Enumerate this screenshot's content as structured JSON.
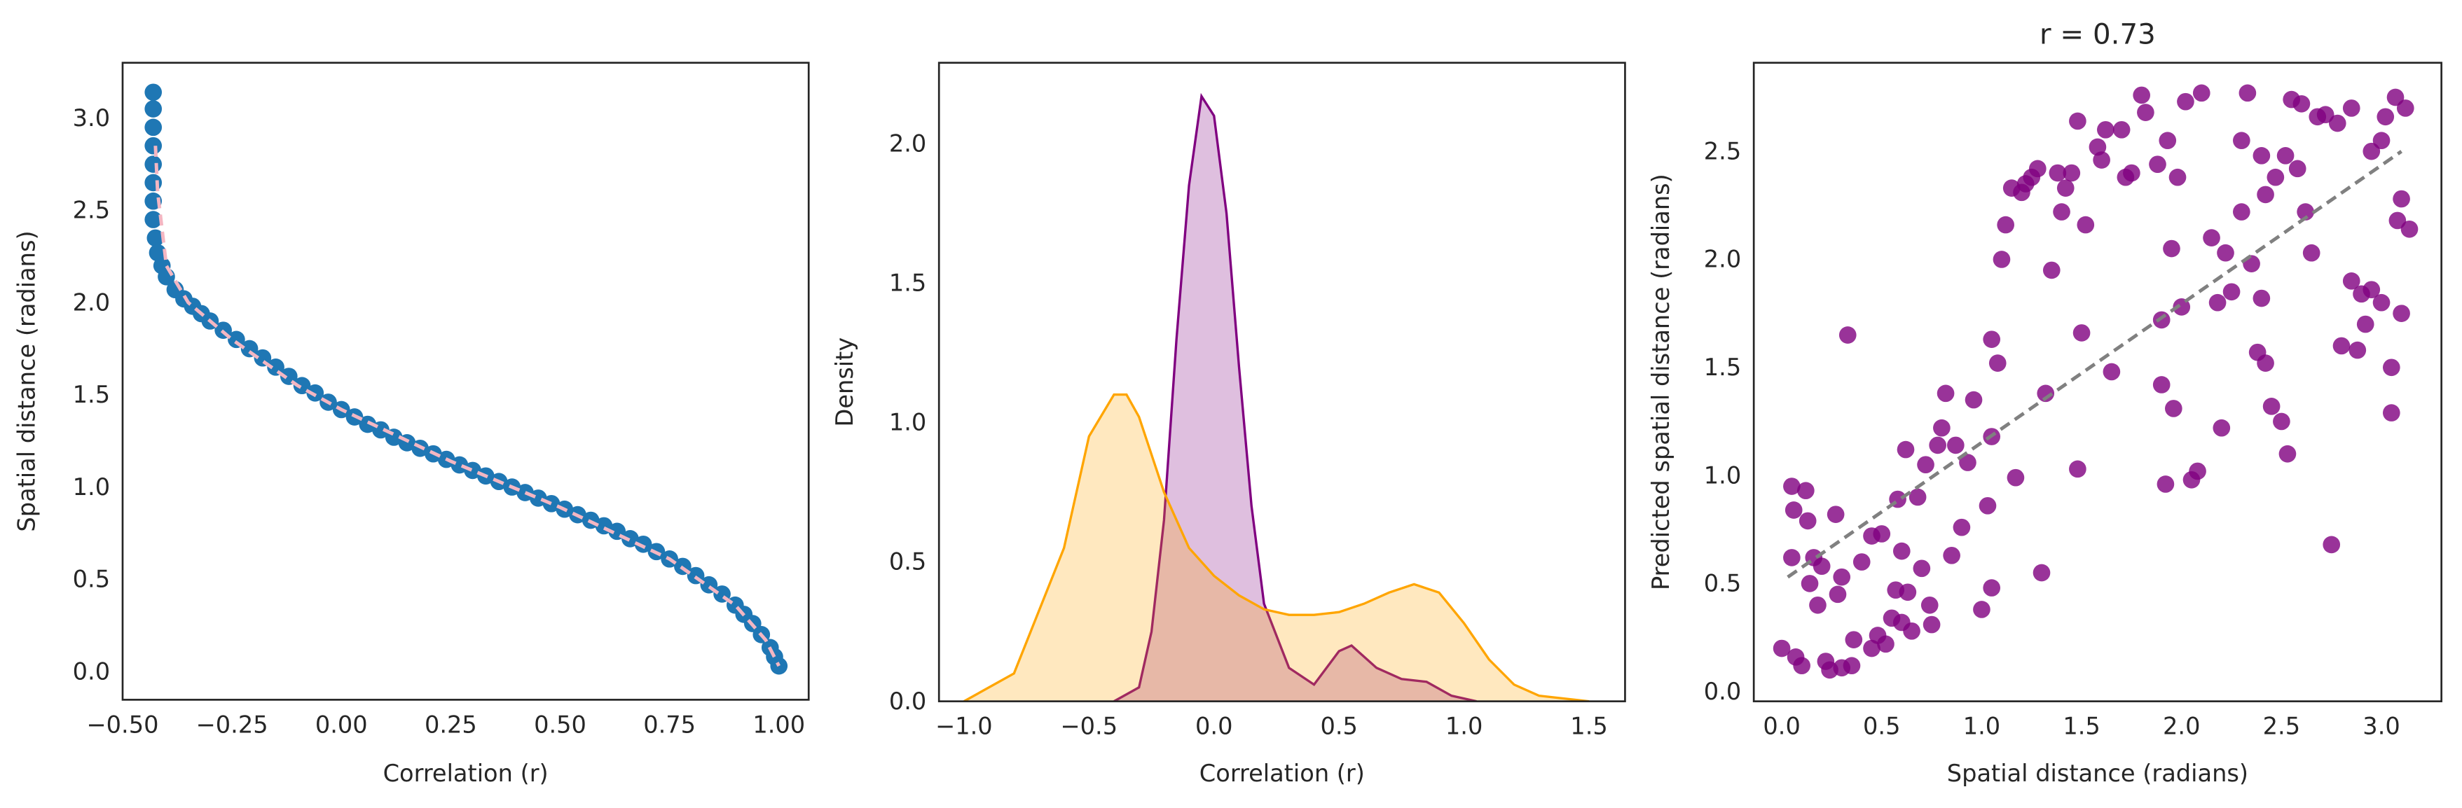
{
  "chart_data": [
    {
      "type": "scatter",
      "xlabel": "Correlation (r)",
      "ylabel": "Spatial distance (radians)",
      "xlim": [
        -0.5,
        1.068
      ],
      "ylim": [
        -0.153,
        3.3
      ],
      "xticks": [
        {
          "value": -0.5,
          "label": "−0.50"
        },
        {
          "value": -0.25,
          "label": "−0.25"
        },
        {
          "value": 0,
          "label": "0.00"
        },
        {
          "value": 0.25,
          "label": "0.25"
        },
        {
          "value": 0.5,
          "label": "0.50"
        },
        {
          "value": 0.75,
          "label": "0.75"
        },
        {
          "value": 1,
          "label": "1.00"
        }
      ],
      "yticks": [
        {
          "value": 0,
          "label": "0.0"
        },
        {
          "value": 0.5,
          "label": "0.5"
        },
        {
          "value": 1,
          "label": "1.0"
        },
        {
          "value": 1.5,
          "label": "1.5"
        },
        {
          "value": 2,
          "label": "2.0"
        },
        {
          "value": 2.5,
          "label": "2.5"
        },
        {
          "value": 3,
          "label": "3.0"
        }
      ],
      "series": [
        {
          "type": "scatter",
          "color": "#1f77b4",
          "alpha": 1,
          "x": [
            -0.43,
            -0.43,
            -0.43,
            -0.43,
            -0.43,
            -0.43,
            -0.43,
            -0.43,
            -0.425,
            -0.42,
            -0.41,
            -0.4,
            -0.38,
            -0.36,
            -0.34,
            -0.32,
            -0.3,
            -0.27,
            -0.24,
            -0.21,
            -0.18,
            -0.15,
            -0.12,
            -0.09,
            -0.06,
            -0.03,
            0,
            0.03,
            0.06,
            0.09,
            0.12,
            0.15,
            0.18,
            0.21,
            0.24,
            0.27,
            0.3,
            0.33,
            0.36,
            0.39,
            0.42,
            0.45,
            0.48,
            0.51,
            0.54,
            0.57,
            0.6,
            0.63,
            0.66,
            0.69,
            0.72,
            0.75,
            0.78,
            0.81,
            0.84,
            0.87,
            0.9,
            0.92,
            0.94,
            0.96,
            0.98,
            0.99,
            1.0
          ],
          "values": [
            3.14,
            3.05,
            2.95,
            2.85,
            2.75,
            2.65,
            2.55,
            2.45,
            2.35,
            2.27,
            2.2,
            2.14,
            2.07,
            2.02,
            1.98,
            1.94,
            1.9,
            1.85,
            1.8,
            1.75,
            1.7,
            1.65,
            1.6,
            1.55,
            1.51,
            1.46,
            1.42,
            1.38,
            1.34,
            1.31,
            1.27,
            1.24,
            1.21,
            1.18,
            1.15,
            1.12,
            1.09,
            1.06,
            1.03,
            1.0,
            0.97,
            0.94,
            0.91,
            0.88,
            0.85,
            0.82,
            0.79,
            0.76,
            0.72,
            0.69,
            0.65,
            0.61,
            0.57,
            0.52,
            0.47,
            0.42,
            0.36,
            0.31,
            0.26,
            0.2,
            0.13,
            0.08,
            0.03
          ]
        },
        {
          "type": "line",
          "color": "#f4b6c2",
          "dash": true,
          "x": [
            -0.425,
            -0.42,
            -0.4,
            -0.35,
            -0.25,
            -0.1,
            0,
            0.25,
            0.5,
            0.75,
            0.9,
            0.97,
            1.0
          ],
          "values": [
            2.85,
            2.6,
            2.2,
            2.0,
            1.8,
            1.55,
            1.42,
            1.14,
            0.89,
            0.61,
            0.36,
            0.17,
            0.03
          ]
        }
      ]
    },
    {
      "type": "area",
      "xlabel": "Correlation (r)",
      "ylabel": "Density",
      "xlim": [
        -1.1,
        1.644
      ],
      "ylim": [
        0,
        2.29
      ],
      "xticks": [
        {
          "value": -1,
          "label": "−1.0"
        },
        {
          "value": -0.5,
          "label": "−0.5"
        },
        {
          "value": 0,
          "label": "0.0"
        },
        {
          "value": 0.5,
          "label": "0.5"
        },
        {
          "value": 1,
          "label": "1.0"
        },
        {
          "value": 1.5,
          "label": "1.5"
        }
      ],
      "yticks": [
        {
          "value": 0,
          "label": "0.0"
        },
        {
          "value": 0.5,
          "label": "0.5"
        },
        {
          "value": 1,
          "label": "1.0"
        },
        {
          "value": 1.5,
          "label": "1.5"
        },
        {
          "value": 2,
          "label": "2.0"
        }
      ],
      "series": [
        {
          "type": "area",
          "color": "#800080",
          "alpha": 0.25,
          "x": [
            -0.4,
            -0.3,
            -0.25,
            -0.2,
            -0.15,
            -0.1,
            -0.05,
            0,
            0.05,
            0.1,
            0.15,
            0.2,
            0.3,
            0.4,
            0.5,
            0.55,
            0.65,
            0.75,
            0.85,
            0.95,
            1.05
          ],
          "values": [
            0,
            0.05,
            0.25,
            0.65,
            1.3,
            1.85,
            2.17,
            2.1,
            1.75,
            1.2,
            0.7,
            0.35,
            0.12,
            0.06,
            0.18,
            0.2,
            0.12,
            0.08,
            0.07,
            0.02,
            0
          ]
        },
        {
          "type": "area",
          "color": "#ffa500",
          "alpha": 0.25,
          "x": [
            -1.0,
            -0.8,
            -0.6,
            -0.5,
            -0.4,
            -0.35,
            -0.3,
            -0.2,
            -0.1,
            0,
            0.1,
            0.2,
            0.3,
            0.4,
            0.5,
            0.6,
            0.7,
            0.8,
            0.9,
            1.0,
            1.1,
            1.2,
            1.3,
            1.5
          ],
          "values": [
            0,
            0.1,
            0.55,
            0.95,
            1.1,
            1.1,
            1.02,
            0.75,
            0.55,
            0.45,
            0.38,
            0.33,
            0.31,
            0.31,
            0.32,
            0.35,
            0.39,
            0.42,
            0.39,
            0.28,
            0.15,
            0.06,
            0.02,
            0
          ]
        }
      ]
    },
    {
      "type": "scatter",
      "title": "r = 0.73",
      "xlabel": "Spatial distance (radians)",
      "ylabel": "Predicted spatial distance (radians)",
      "xlim": [
        -0.14,
        3.3
      ],
      "ylim": [
        -0.045,
        2.91
      ],
      "xticks": [
        {
          "value": 0,
          "label": "0.0"
        },
        {
          "value": 0.5,
          "label": "0.5"
        },
        {
          "value": 1,
          "label": "1.0"
        },
        {
          "value": 1.5,
          "label": "1.5"
        },
        {
          "value": 2,
          "label": "2.0"
        },
        {
          "value": 2.5,
          "label": "2.5"
        },
        {
          "value": 3,
          "label": "3.0"
        }
      ],
      "yticks": [
        {
          "value": 0,
          "label": "0.0"
        },
        {
          "value": 0.5,
          "label": "0.5"
        },
        {
          "value": 1,
          "label": "1.0"
        },
        {
          "value": 1.5,
          "label": "1.5"
        },
        {
          "value": 2,
          "label": "2.0"
        },
        {
          "value": 2.5,
          "label": "2.5"
        }
      ],
      "series": [
        {
          "type": "scatter",
          "color": "#800080",
          "alpha": 0.8,
          "x": [
            0.0,
            0.05,
            0.05,
            0.06,
            0.07,
            0.1,
            0.12,
            0.13,
            0.14,
            0.16,
            0.18,
            0.2,
            0.22,
            0.24,
            0.27,
            0.28,
            0.3,
            0.3,
            0.33,
            0.35,
            0.36,
            0.4,
            0.45,
            0.45,
            0.48,
            0.5,
            0.52,
            0.55,
            0.57,
            0.58,
            0.6,
            0.6,
            0.62,
            0.63,
            0.65,
            0.68,
            0.7,
            0.72,
            0.74,
            0.75,
            0.78,
            0.8,
            0.82,
            0.85,
            0.87,
            0.9,
            0.93,
            0.96,
            1.0,
            1.03,
            1.05,
            1.05,
            1.05,
            1.08,
            1.1,
            1.12,
            1.15,
            1.17,
            1.2,
            1.22,
            1.25,
            1.28,
            1.3,
            1.32,
            1.35,
            1.38,
            1.4,
            1.42,
            1.45,
            1.48,
            1.48,
            1.5,
            1.52,
            1.58,
            1.6,
            1.62,
            1.65,
            1.7,
            1.72,
            1.75,
            1.8,
            1.82,
            1.88,
            1.9,
            1.9,
            1.92,
            1.93,
            1.95,
            1.96,
            1.98,
            2.0,
            2.02,
            2.05,
            2.08,
            2.1,
            2.15,
            2.18,
            2.2,
            2.22,
            2.25,
            2.3,
            2.3,
            2.33,
            2.35,
            2.38,
            2.4,
            2.42,
            2.42,
            2.45,
            2.47,
            2.5,
            2.52,
            2.53,
            2.55,
            2.58,
            2.6,
            2.62,
            2.65,
            2.68,
            2.72,
            2.75,
            2.78,
            2.8,
            2.85,
            2.88,
            2.9,
            2.92,
            2.95,
            2.95,
            3.0,
            3.0,
            3.02,
            3.05,
            3.05,
            3.07,
            3.08,
            3.1,
            3.1,
            3.12,
            3.14,
            2.4,
            2.85
          ],
          "values": [
            0.2,
            0.95,
            0.62,
            0.84,
            0.16,
            0.12,
            0.93,
            0.79,
            0.5,
            0.62,
            0.4,
            0.58,
            0.14,
            0.1,
            0.82,
            0.45,
            0.53,
            0.11,
            1.65,
            0.12,
            0.24,
            0.6,
            0.2,
            0.72,
            0.26,
            0.73,
            0.22,
            0.34,
            0.47,
            0.89,
            0.32,
            0.65,
            1.12,
            0.46,
            0.28,
            0.9,
            0.57,
            1.05,
            0.4,
            0.31,
            1.14,
            1.22,
            1.38,
            0.63,
            1.14,
            0.76,
            1.06,
            1.35,
            0.38,
            0.86,
            1.18,
            1.63,
            0.48,
            1.52,
            2.0,
            2.16,
            2.33,
            0.99,
            2.31,
            2.35,
            2.38,
            2.42,
            0.55,
            1.38,
            1.95,
            2.4,
            2.22,
            2.33,
            2.4,
            2.64,
            1.03,
            1.66,
            2.16,
            2.52,
            2.46,
            2.6,
            1.48,
            2.6,
            2.38,
            2.4,
            2.76,
            2.68,
            2.44,
            1.72,
            1.42,
            0.96,
            2.55,
            2.05,
            1.31,
            2.38,
            1.78,
            2.73,
            0.98,
            1.02,
            2.77,
            2.1,
            1.8,
            1.22,
            2.03,
            1.85,
            2.55,
            2.22,
            2.77,
            1.98,
            1.57,
            1.82,
            1.52,
            2.3,
            1.32,
            2.38,
            1.25,
            2.48,
            1.1,
            2.74,
            2.42,
            2.72,
            2.22,
            2.03,
            2.66,
            2.67,
            0.68,
            2.63,
            1.6,
            2.7,
            1.58,
            1.84,
            1.7,
            1.86,
            2.5,
            1.8,
            2.55,
            2.66,
            1.29,
            1.5,
            2.75,
            2.18,
            1.75,
            2.28,
            2.7,
            2.14,
            2.48,
            1.9
          ]
        },
        {
          "type": "line",
          "color": "#808080",
          "dash": true,
          "x": [
            0.03,
            3.1
          ],
          "values": [
            0.53,
            2.5
          ]
        }
      ]
    }
  ]
}
